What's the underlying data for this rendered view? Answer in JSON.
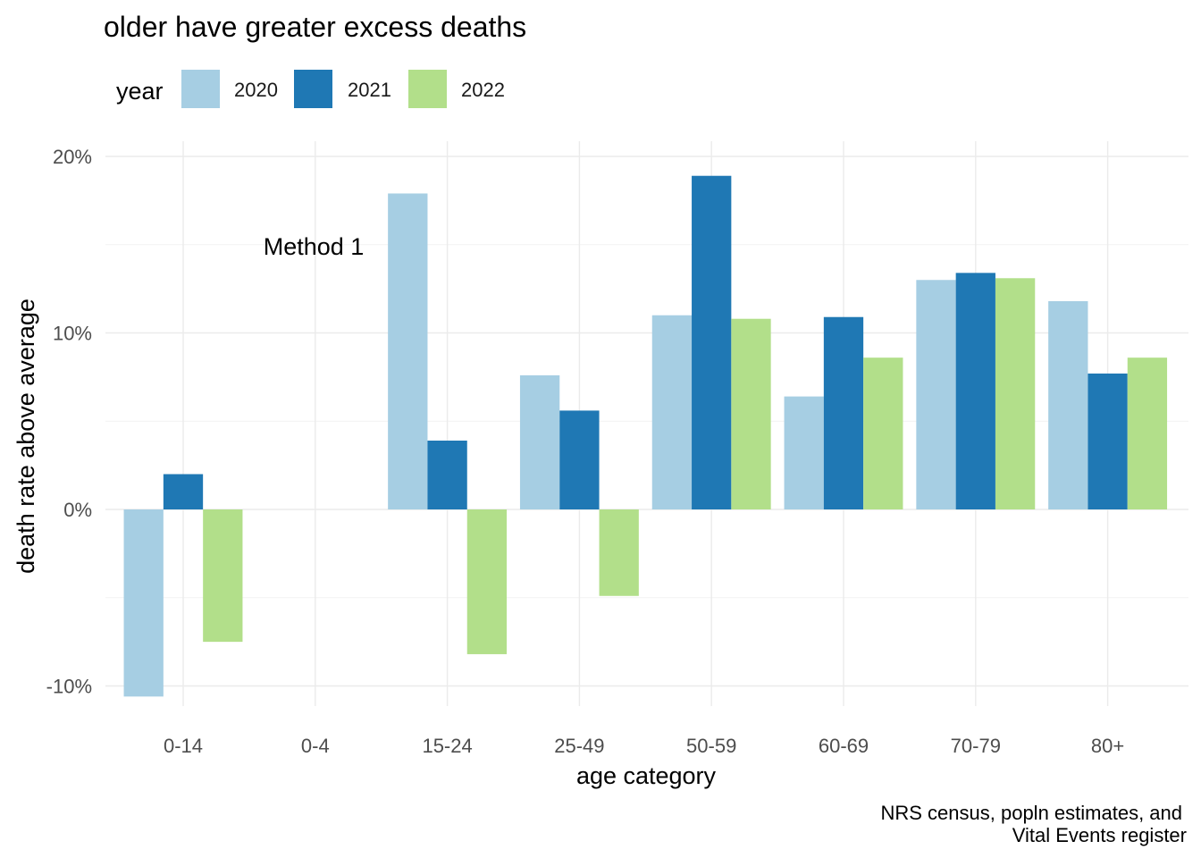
{
  "chart_data": {
    "type": "bar",
    "title": "older have greater excess deaths",
    "xlabel": "age category",
    "ylabel": "death rate above average",
    "categories": [
      "0-14",
      "0-4",
      "15-24",
      "25-49",
      "50-59",
      "60-69",
      "70-79",
      "80+"
    ],
    "series": [
      {
        "name": "2020",
        "color": "#a6cee3",
        "values": [
          -10.6,
          null,
          17.9,
          7.6,
          11.0,
          6.4,
          13.0,
          11.8
        ]
      },
      {
        "name": "2021",
        "color": "#1f78b4",
        "values": [
          2.0,
          null,
          3.9,
          5.6,
          18.9,
          10.9,
          13.4,
          7.7
        ]
      },
      {
        "name": "2022",
        "color": "#b2df8a",
        "values": [
          -7.5,
          null,
          -8.2,
          -4.9,
          10.8,
          8.6,
          13.1,
          8.6
        ]
      }
    ],
    "ylim": [
      -11.2,
      20.2
    ],
    "yticks": [
      -10,
      0,
      10,
      20
    ],
    "ytick_labels": [
      "-10%",
      "0%",
      "10%",
      "20%"
    ],
    "legend": {
      "title": "year",
      "position": "top-left"
    },
    "annotation": "Method 1",
    "caption_lines": [
      "NRS census, popln estimates, and",
      "Vital Events register"
    ],
    "grid": true
  }
}
